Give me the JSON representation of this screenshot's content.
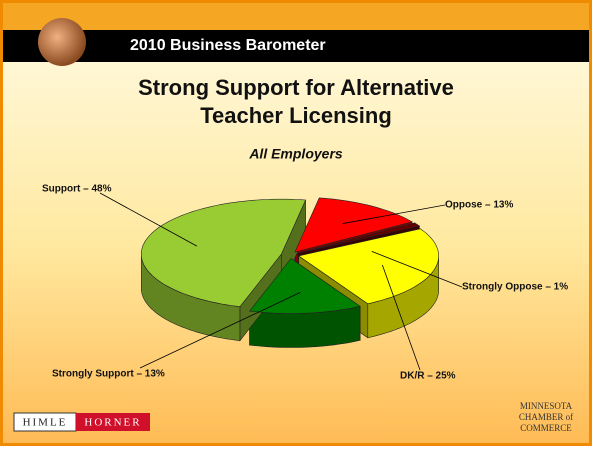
{
  "header": {
    "title": "2010 Business Barometer"
  },
  "chart_data": {
    "type": "pie3d",
    "title": [
      "Strong Support for Alternative",
      "Teacher Licensing"
    ],
    "subtitle": "All Employers",
    "values": [
      13,
      1,
      25,
      13,
      48
    ],
    "value_labels": [
      "Oppose – 13%",
      "Strongly Oppose – 1%",
      "DK/R – 25%",
      "Strongly Support – 13%",
      "Support – 48%"
    ],
    "colors": [
      "#ff0000",
      "#660000",
      "#ffff00",
      "#008000",
      "#99cc33"
    ]
  },
  "footer": {
    "left": [
      "HIMLE",
      "HORNER"
    ],
    "right": [
      "MINNESOTA",
      "CHAMBER of",
      "COMMERCE"
    ]
  }
}
